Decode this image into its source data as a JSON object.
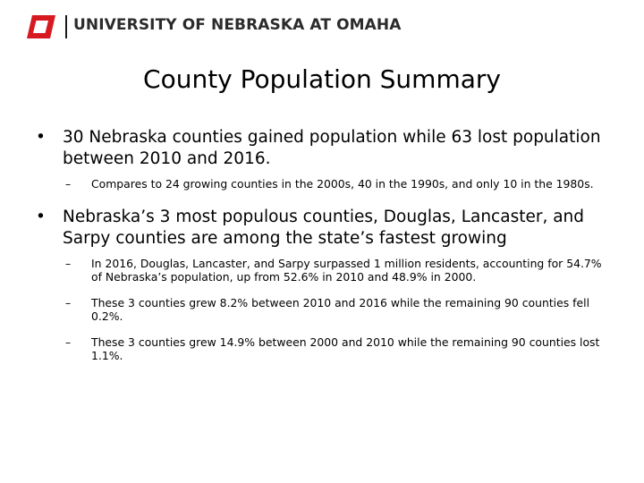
{
  "header": {
    "university_name": "UNIVERSITY OF NEBRASKA AT OMAHA",
    "logo_letter": "O",
    "brand_color": "#d71920"
  },
  "slide": {
    "title": "County Population Summary",
    "bullets": [
      {
        "symbol": "•",
        "text": "30 Nebraska counties gained population while 63 lost population between 2010 and 2016.",
        "sub": [
          {
            "symbol": "–",
            "text": "Compares to 24 growing counties in the 2000s, 40 in the 1990s, and only 10 in the 1980s."
          }
        ]
      },
      {
        "symbol": "•",
        "text": "Nebraska’s 3 most populous counties, Douglas, Lancaster, and Sarpy counties are among the state’s fastest growing",
        "sub": [
          {
            "symbol": "–",
            "text": "In 2016, Douglas, Lancaster, and Sarpy surpassed 1 million residents, accounting for 54.7% of Nebraska’s population, up from 52.6% in 2010 and 48.9% in 2000."
          },
          {
            "symbol": "–",
            "text": "These 3 counties grew 8.2% between 2010 and 2016 while the remaining 90 counties fell 0.2%."
          },
          {
            "symbol": "–",
            "text": "These 3 counties grew 14.9% between 2000 and 2010 while the remaining 90 counties lost 1.1%."
          }
        ]
      }
    ]
  }
}
